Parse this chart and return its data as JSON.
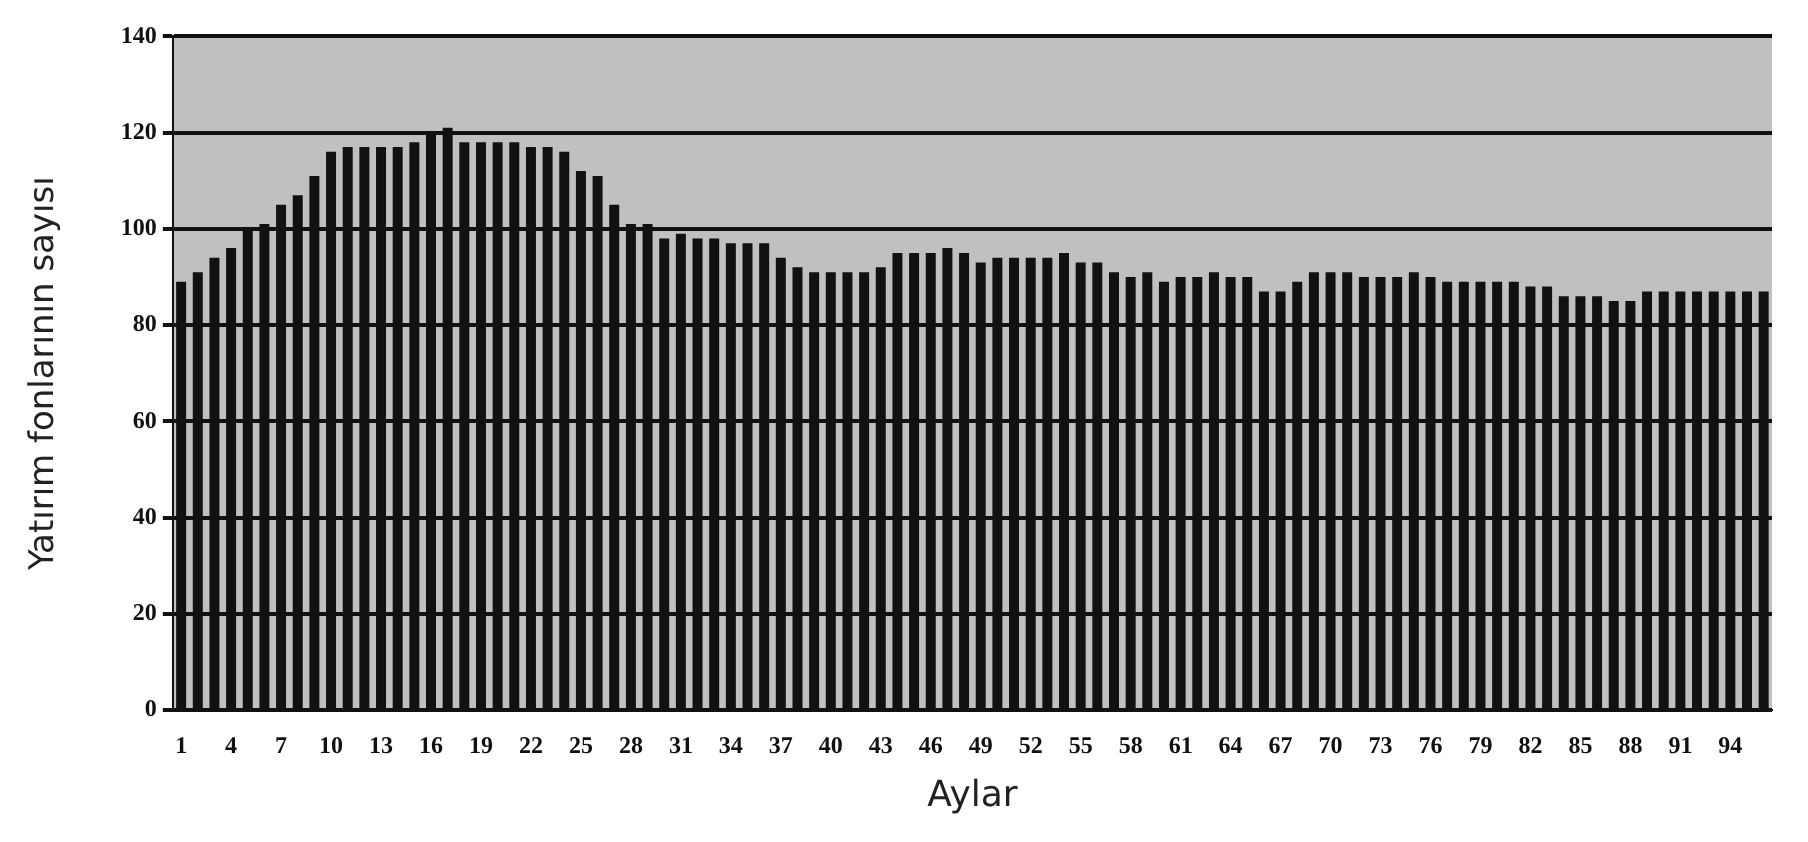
{
  "chart_data": {
    "type": "bar",
    "xlabel": "Aylar",
    "ylabel": "Yatırım fonlarının sayısı",
    "categories": [
      "1",
      null,
      null,
      "4",
      null,
      null,
      "7",
      null,
      null,
      "10",
      null,
      null,
      "13",
      null,
      null,
      "16",
      null,
      null,
      "19",
      null,
      null,
      "22",
      null,
      null,
      "25",
      null,
      null,
      "28",
      null,
      null,
      "31",
      null,
      null,
      "34",
      null,
      null,
      "37",
      null,
      null,
      "40",
      null,
      null,
      "43",
      null,
      null,
      "46",
      null,
      null,
      "49",
      null,
      null,
      "52",
      null,
      null,
      "55",
      null,
      null,
      "58",
      null,
      null,
      "61",
      null,
      null,
      "64",
      null,
      null,
      "67",
      null,
      null,
      "70",
      null,
      null,
      "73",
      null,
      null,
      "76",
      null,
      null,
      "79",
      null,
      null,
      "82",
      null,
      null,
      "85",
      null,
      null,
      "88",
      null,
      null,
      "91",
      null,
      null,
      "94",
      null,
      null
    ],
    "values": [
      89,
      91,
      94,
      96,
      100,
      101,
      105,
      107,
      111,
      116,
      117,
      117,
      117,
      117,
      118,
      120,
      121,
      118,
      118,
      118,
      118,
      117,
      117,
      116,
      112,
      111,
      105,
      101,
      101,
      98,
      99,
      98,
      98,
      97,
      97,
      97,
      94,
      92,
      91,
      91,
      91,
      91,
      92,
      95,
      95,
      95,
      96,
      95,
      93,
      94,
      94,
      94,
      94,
      95,
      93,
      93,
      91,
      90,
      91,
      89,
      90,
      90,
      91,
      90,
      90,
      87,
      87,
      89,
      91,
      91,
      91,
      90,
      90,
      90,
      91,
      90,
      89,
      89,
      89,
      89,
      89,
      88,
      88,
      86,
      86,
      86,
      85,
      85,
      87,
      87,
      87,
      87,
      87,
      87,
      87,
      87
    ],
    "color": "#111111",
    "ylim": [
      0,
      140
    ],
    "yticks": [
      0,
      20,
      40,
      60,
      80,
      100,
      120,
      140
    ],
    "grid": "y",
    "legend": false
  }
}
